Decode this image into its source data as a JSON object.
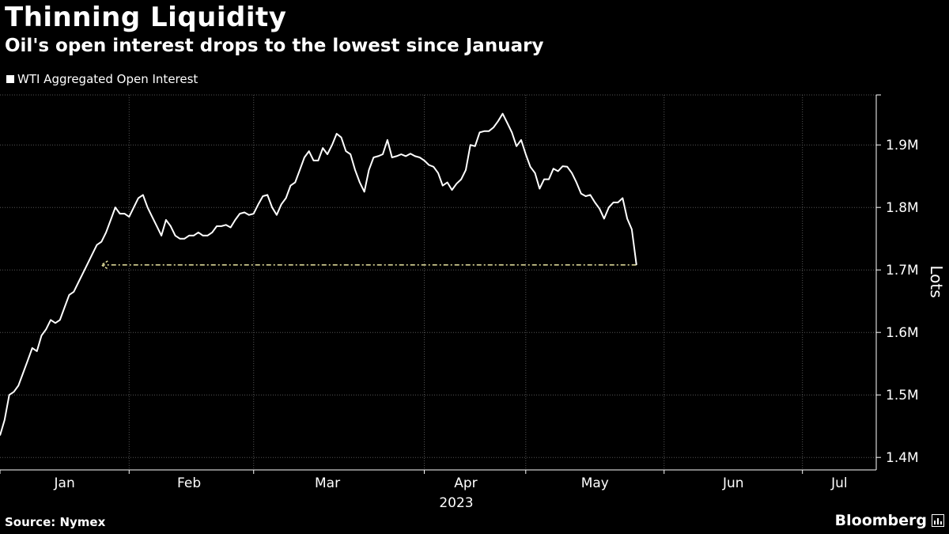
{
  "header": {
    "title": "Thinning Liquidity",
    "subtitle": "Oil's open interest drops to the lowest since January"
  },
  "footer": {
    "source": "Source: Nymex",
    "brand": "Bloomberg"
  },
  "colors": {
    "background": "#000000",
    "line": "#ffffff",
    "grid": "#555555",
    "annotation": "#e8e4a0"
  },
  "chart_data": {
    "type": "line",
    "title": "Thinning Liquidity",
    "subtitle": "Oil's open interest drops to the lowest since January",
    "legend": [
      "WTI Aggregated Open Interest"
    ],
    "legend_position": "top-left",
    "ylabel": "Lots",
    "xlabel": "2023",
    "ylim": [
      1.38,
      1.98
    ],
    "y_ticks": [
      1.4,
      1.5,
      1.6,
      1.7,
      1.8,
      1.9
    ],
    "y_tick_labels": [
      "1.4M",
      "1.5M",
      "1.6M",
      "1.7M",
      "1.8M",
      "1.9M"
    ],
    "x_range": [
      0,
      190
    ],
    "month_boundaries": [
      0,
      28,
      55,
      92,
      114,
      144,
      174,
      190
    ],
    "x_tick_labels": [
      "Jan",
      "Feb",
      "Mar",
      "Apr",
      "May",
      "Jun",
      "Jul"
    ],
    "x_tick_positions": [
      14,
      41,
      71,
      101,
      129,
      159,
      182
    ],
    "grid": true,
    "series": [
      {
        "name": "WTI Aggregated Open Interest",
        "points": [
          [
            0,
            1.435
          ],
          [
            1,
            1.46
          ],
          [
            2,
            1.5
          ],
          [
            3,
            1.505
          ],
          [
            4,
            1.515
          ],
          [
            5,
            1.535
          ],
          [
            6,
            1.555
          ],
          [
            7,
            1.575
          ],
          [
            8,
            1.57
          ],
          [
            9,
            1.595
          ],
          [
            10,
            1.605
          ],
          [
            11,
            1.62
          ],
          [
            12,
            1.615
          ],
          [
            13,
            1.62
          ],
          [
            14,
            1.64
          ],
          [
            15,
            1.66
          ],
          [
            16,
            1.665
          ],
          [
            17,
            1.68
          ],
          [
            18,
            1.695
          ],
          [
            19,
            1.71
          ],
          [
            20,
            1.725
          ],
          [
            21,
            1.74
          ],
          [
            22,
            1.745
          ],
          [
            23,
            1.76
          ],
          [
            24,
            1.78
          ],
          [
            25,
            1.8
          ],
          [
            26,
            1.79
          ],
          [
            27,
            1.79
          ],
          [
            28,
            1.785
          ],
          [
            29,
            1.8
          ],
          [
            30,
            1.815
          ],
          [
            31,
            1.82
          ],
          [
            32,
            1.8
          ],
          [
            33,
            1.785
          ],
          [
            34,
            1.77
          ],
          [
            35,
            1.755
          ],
          [
            36,
            1.78
          ],
          [
            37,
            1.77
          ],
          [
            38,
            1.755
          ],
          [
            39,
            1.75
          ],
          [
            40,
            1.75
          ],
          [
            41,
            1.755
          ],
          [
            42,
            1.755
          ],
          [
            43,
            1.76
          ],
          [
            44,
            1.755
          ],
          [
            45,
            1.755
          ],
          [
            46,
            1.76
          ],
          [
            47,
            1.77
          ],
          [
            48,
            1.77
          ],
          [
            49,
            1.772
          ],
          [
            50,
            1.768
          ],
          [
            51,
            1.78
          ],
          [
            52,
            1.79
          ],
          [
            53,
            1.792
          ],
          [
            54,
            1.788
          ],
          [
            55,
            1.79
          ],
          [
            56,
            1.805
          ],
          [
            57,
            1.818
          ],
          [
            58,
            1.82
          ],
          [
            59,
            1.8
          ],
          [
            60,
            1.788
          ],
          [
            61,
            1.805
          ],
          [
            62,
            1.815
          ],
          [
            63,
            1.835
          ],
          [
            64,
            1.84
          ],
          [
            65,
            1.86
          ],
          [
            66,
            1.88
          ],
          [
            67,
            1.89
          ],
          [
            68,
            1.875
          ],
          [
            69,
            1.875
          ],
          [
            70,
            1.895
          ],
          [
            71,
            1.885
          ],
          [
            72,
            1.9
          ],
          [
            73,
            1.918
          ],
          [
            74,
            1.912
          ],
          [
            75,
            1.89
          ],
          [
            76,
            1.885
          ],
          [
            77,
            1.86
          ],
          [
            78,
            1.84
          ],
          [
            79,
            1.825
          ],
          [
            80,
            1.86
          ],
          [
            81,
            1.88
          ],
          [
            82,
            1.882
          ],
          [
            83,
            1.885
          ],
          [
            84,
            1.908
          ],
          [
            85,
            1.88
          ],
          [
            86,
            1.882
          ],
          [
            87,
            1.885
          ],
          [
            88,
            1.882
          ],
          [
            89,
            1.886
          ],
          [
            90,
            1.882
          ],
          [
            91,
            1.88
          ],
          [
            92,
            1.875
          ],
          [
            93,
            1.868
          ],
          [
            94,
            1.865
          ],
          [
            95,
            1.855
          ],
          [
            96,
            1.835
          ],
          [
            97,
            1.84
          ],
          [
            98,
            1.828
          ],
          [
            99,
            1.838
          ],
          [
            100,
            1.845
          ],
          [
            101,
            1.86
          ],
          [
            102,
            1.9
          ],
          [
            103,
            1.898
          ],
          [
            104,
            1.92
          ],
          [
            105,
            1.922
          ],
          [
            106,
            1.922
          ],
          [
            107,
            1.928
          ],
          [
            108,
            1.938
          ],
          [
            109,
            1.95
          ],
          [
            110,
            1.935
          ],
          [
            111,
            1.92
          ],
          [
            112,
            1.898
          ],
          [
            113,
            1.908
          ],
          [
            114,
            1.885
          ],
          [
            115,
            1.865
          ],
          [
            116,
            1.855
          ],
          [
            117,
            1.83
          ],
          [
            118,
            1.845
          ],
          [
            119,
            1.845
          ],
          [
            120,
            1.862
          ],
          [
            121,
            1.858
          ],
          [
            122,
            1.866
          ],
          [
            123,
            1.865
          ],
          [
            124,
            1.855
          ],
          [
            125,
            1.84
          ],
          [
            126,
            1.822
          ],
          [
            127,
            1.818
          ],
          [
            128,
            1.82
          ],
          [
            129,
            1.808
          ],
          [
            130,
            1.798
          ],
          [
            131,
            1.782
          ],
          [
            132,
            1.8
          ],
          [
            133,
            1.808
          ],
          [
            134,
            1.808
          ],
          [
            135,
            1.815
          ],
          [
            136,
            1.782
          ],
          [
            137,
            1.765
          ],
          [
            138,
            1.708
          ]
        ]
      }
    ],
    "annotation": {
      "type": "dashed-arrow",
      "value": 1.708,
      "x_from": 138,
      "x_to": 22
    }
  }
}
